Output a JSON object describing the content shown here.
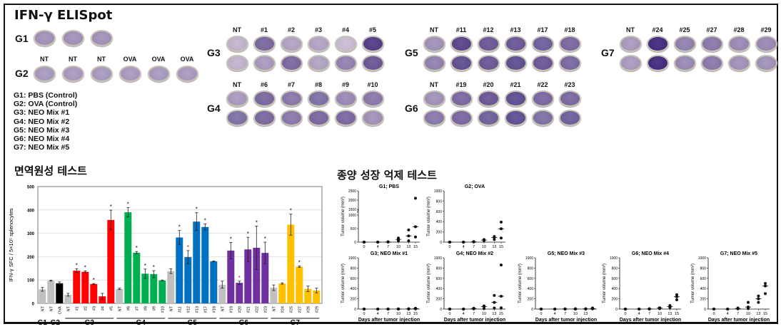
{
  "elispot": {
    "title": "IFN-γ ELISpot",
    "g1": {
      "label": "G1",
      "shades": [
        0.35,
        0.35,
        0.35
      ]
    },
    "g2": {
      "label": "G2",
      "labels": [
        "NT",
        "NT",
        "NT",
        "OVA",
        "OVA",
        "OVA"
      ],
      "shades": [
        0.3,
        0.3,
        0.3,
        0.3,
        0.3,
        0.3
      ]
    },
    "legend": [
      "G1: PBS (Control)",
      "G2: OVA (Control)",
      "G3: NEO Mix #1",
      "G4: NEO Mix #2",
      "G5: NEO Mix #3",
      "G6: NEO Mix #4",
      "G7: NEO Mix #5"
    ],
    "blocks": [
      {
        "group": "G3",
        "labels": [
          "NT",
          "#1",
          "#2",
          "#3",
          "#4",
          "#5"
        ],
        "shades": [
          [
            0.15,
            0.6,
            0.25,
            0.25,
            0.1,
            0.85
          ],
          [
            0.15,
            0.3,
            0.6,
            0.25,
            0.45,
            0.7
          ]
        ]
      },
      {
        "group": "G4",
        "labels": [
          "NT",
          "#6",
          "#7",
          "#8",
          "#9",
          "#10"
        ],
        "shades": [
          [
            0.3,
            0.6,
            0.5,
            0.55,
            0.4,
            0.5
          ],
          [
            0.55,
            0.6,
            0.5,
            0.6,
            0.6,
            0.35
          ]
        ]
      },
      {
        "group": "G5",
        "labels": [
          "NT",
          "#11",
          "#12",
          "#13",
          "#17",
          "#18"
        ],
        "shades": [
          [
            0.35,
            0.8,
            0.7,
            0.7,
            0.65,
            0.6
          ],
          [
            0.45,
            0.75,
            0.7,
            0.75,
            0.7,
            0.6
          ]
        ]
      },
      {
        "group": "G6",
        "labels": [
          "NT",
          "#19",
          "#20",
          "#21",
          "#22",
          "#23"
        ],
        "shades": [
          [
            0.35,
            0.6,
            0.7,
            0.75,
            0.6,
            0.6
          ],
          [
            0.5,
            0.6,
            0.65,
            0.75,
            0.55,
            0.65
          ]
        ]
      },
      {
        "group": "G7",
        "labels": [
          "NT",
          "#24",
          "#25",
          "#27",
          "#28",
          "#29"
        ],
        "shades": [
          [
            0.3,
            0.95,
            0.45,
            0.5,
            0.4,
            0.4
          ],
          [
            0.3,
            0.95,
            0.4,
            0.5,
            0.35,
            0.35
          ]
        ]
      }
    ]
  },
  "immuno_title": "면역원성 테스트",
  "tumor_title": "종양 성장 억제 테스트",
  "chart_data": [
    {
      "type": "bar",
      "title": "",
      "ylabel": "IFN-γ SFC / 5×10⁵ splenocytes",
      "ylim": [
        0,
        500
      ],
      "yticks": [
        0,
        100,
        200,
        300,
        400,
        500
      ],
      "grid": true,
      "groups": [
        {
          "name": "G1",
          "color": "#c0c0c0",
          "bars": [
            {
              "label": "NT",
              "value": 60,
              "err": 8,
              "star": ""
            }
          ]
        },
        {
          "name": "G2",
          "color": "#c0c0c0",
          "bars": [
            {
              "label": "NT",
              "value": 97,
              "err": 2,
              "star": ""
            },
            {
              "label": "OVA",
              "value": 86,
              "err": 6,
              "star": "",
              "color": "#000000"
            }
          ]
        },
        {
          "name": "G3",
          "color": "#ff0000",
          "bars": [
            {
              "label": "NT",
              "value": 37,
              "err": 6,
              "star": "",
              "color": "#c0c0c0"
            },
            {
              "label": "#1",
              "value": 140,
              "err": 8,
              "star": "*"
            },
            {
              "label": "#2",
              "value": 135,
              "err": 4,
              "star": "*"
            },
            {
              "label": "#3",
              "value": 83,
              "err": 2,
              "star": "*"
            },
            {
              "label": "#4",
              "value": 30,
              "err": 13,
              "star": ""
            },
            {
              "label": "#5",
              "value": 357,
              "err": 42,
              "star": "*"
            }
          ]
        },
        {
          "name": "G4",
          "color": "#00b050",
          "bars": [
            {
              "label": "NT",
              "value": 62,
              "err": 3,
              "star": "",
              "color": "#c0c0c0"
            },
            {
              "label": "#6",
              "value": 390,
              "err": 20,
              "star": "*"
            },
            {
              "label": "#7",
              "value": 217,
              "err": 5,
              "star": "*"
            },
            {
              "label": "#8",
              "value": 127,
              "err": 20,
              "star": "*"
            },
            {
              "label": "#9",
              "value": 125,
              "err": 15,
              "star": "*"
            },
            {
              "label": "#10",
              "value": 98,
              "err": 2,
              "star": ""
            }
          ]
        },
        {
          "name": "G5",
          "color": "#0070c0",
          "bars": [
            {
              "label": "NT",
              "value": 138,
              "err": 10,
              "star": "",
              "color": "#c0c0c0"
            },
            {
              "label": "#11",
              "value": 282,
              "err": 30,
              "star": "*"
            },
            {
              "label": "#12",
              "value": 198,
              "err": 28,
              "star": "*",
              "star_color": "#ff0000"
            },
            {
              "label": "#13",
              "value": 350,
              "err": 38,
              "star": "*"
            },
            {
              "label": "#17",
              "value": 327,
              "err": 13,
              "star": "*"
            },
            {
              "label": "#18",
              "value": 180,
              "err": 2,
              "star": ""
            }
          ]
        },
        {
          "name": "G6",
          "color": "#7030a0",
          "bars": [
            {
              "label": "NT",
              "value": 80,
              "err": 15,
              "star": "",
              "color": "#c0c0c0"
            },
            {
              "label": "#19",
              "value": 226,
              "err": 35,
              "star": "*"
            },
            {
              "label": "#20",
              "value": 88,
              "err": 7,
              "star": "*",
              "star_color": "#ff0000"
            },
            {
              "label": "#21",
              "value": 231,
              "err": 52,
              "star": "*"
            },
            {
              "label": "#22",
              "value": 238,
              "err": 93,
              "star": "*"
            },
            {
              "label": "#23",
              "value": 216,
              "err": 46,
              "star": "*"
            }
          ]
        },
        {
          "name": "G7",
          "color": "#ffc000",
          "bars": [
            {
              "label": "NT",
              "value": 67,
              "err": 12,
              "star": "",
              "color": "#c0c0c0"
            },
            {
              "label": "#24",
              "value": 85,
              "err": 3,
              "star": ""
            },
            {
              "label": "#25",
              "value": 337,
              "err": 45,
              "star": "*"
            },
            {
              "label": "#27",
              "value": 157,
              "err": 3,
              "star": "*"
            },
            {
              "label": "#28",
              "value": 62,
              "err": 12,
              "star": ""
            },
            {
              "label": "#29",
              "value": 55,
              "err": 10,
              "star": ""
            }
          ]
        }
      ]
    },
    {
      "type": "scatter",
      "xlabel": "Days after tumor injection",
      "ylabel": "Tumor volume (mm³)",
      "plots": [
        {
          "title": "G1; PBS",
          "broken_axis": true,
          "yticks": [
            0,
            500,
            1000,
            1500,
            2000,
            2500
          ],
          "xticks": [
            "0",
            "4",
            "7",
            "10",
            "13",
            "15"
          ],
          "show_xlabel": false,
          "x": [
            0,
            4,
            7,
            10,
            13,
            15
          ],
          "points": [
            [
              0,
              0,
              0
            ],
            [
              0,
              0,
              0
            ],
            [
              5,
              5,
              10
            ],
            [
              50,
              100,
              150
            ],
            [
              50,
              230,
              450
            ],
            [
              190,
              570,
              2100
            ]
          ],
          "median": [
            0,
            0,
            5,
            100,
            230,
            570
          ]
        },
        {
          "title": "G2; OVA",
          "yticks": [
            0,
            200,
            400,
            600,
            800,
            1000
          ],
          "xticks": [
            "0",
            "4",
            "7",
            "10",
            "13",
            "15"
          ],
          "show_xlabel": false,
          "x": [
            0,
            4,
            7,
            10,
            13,
            15
          ],
          "points": [
            [
              0,
              0,
              0
            ],
            [
              0,
              0,
              0
            ],
            [
              5,
              5,
              10
            ],
            [
              30,
              40,
              50
            ],
            [
              50,
              90,
              110
            ],
            [
              80,
              260,
              390
            ]
          ],
          "median": [
            0,
            0,
            5,
            40,
            90,
            260
          ]
        },
        {
          "title": "G3; NEO Mix #1",
          "yticks": [
            0,
            200,
            400,
            600,
            800,
            1000
          ],
          "xticks": [
            "0",
            "4",
            "7",
            "10",
            "13",
            "15"
          ],
          "show_xlabel": true,
          "x": [
            0,
            4,
            7,
            10,
            13,
            15
          ],
          "points": [
            [
              0,
              0,
              0
            ],
            [
              0,
              0,
              0
            ],
            [
              0,
              0,
              2
            ],
            [
              0,
              2,
              4
            ],
            [
              0,
              3,
              5
            ],
            [
              5,
              10,
              15
            ]
          ],
          "median": [
            0,
            0,
            0,
            2,
            3,
            10
          ]
        },
        {
          "title": "G4; NEO Mix #2",
          "yticks": [
            0,
            200,
            400,
            600,
            800,
            1000
          ],
          "xticks": [
            "0",
            "4",
            "7",
            "10",
            "13",
            "15"
          ],
          "show_xlabel": true,
          "x": [
            0,
            4,
            7,
            10,
            13,
            15
          ],
          "points": [
            [
              0,
              0,
              0
            ],
            [
              0,
              0,
              0
            ],
            [
              5,
              10,
              15
            ],
            [
              10,
              50,
              60
            ],
            [
              20,
              130,
              265
            ],
            [
              25,
              250,
              860
            ]
          ],
          "median": [
            0,
            0,
            10,
            50,
            130,
            250
          ]
        },
        {
          "title": "G5; NEO Mix #3",
          "yticks": [
            0,
            200,
            400,
            600,
            800,
            1000
          ],
          "xticks": [
            "0",
            "4",
            "7",
            "10",
            "13",
            ""
          ],
          "show_xlabel": true,
          "x": [
            0,
            4,
            7,
            10,
            13,
            15
          ],
          "points": [
            [
              0,
              0,
              0
            ],
            [
              0,
              0,
              0
            ],
            [
              0,
              2,
              3
            ],
            [
              0,
              3,
              5
            ],
            [
              0,
              3,
              5
            ],
            [
              5,
              10,
              20
            ]
          ],
          "median": [
            0,
            0,
            2,
            3,
            3,
            10
          ]
        },
        {
          "title": "G6; NEO Mix #4",
          "yticks": [
            0,
            200,
            400,
            600,
            800,
            1000
          ],
          "xticks": [
            "0",
            "4",
            "7",
            "10",
            "13",
            "15"
          ],
          "show_xlabel": true,
          "x": [
            0,
            4,
            7,
            10,
            13,
            15
          ],
          "points": [
            [
              0,
              0,
              0
            ],
            [
              0,
              0,
              0
            ],
            [
              0,
              3,
              5
            ],
            [
              10,
              20,
              25
            ],
            [
              30,
              50,
              70
            ],
            [
              180,
              240,
              280
            ]
          ],
          "median": [
            0,
            0,
            3,
            20,
            50,
            240
          ]
        },
        {
          "title": "G7; NEO Mix #5",
          "yticks": [
            0,
            200,
            400,
            600,
            800,
            1000
          ],
          "xticks": [
            "0",
            "4",
            "7",
            "10",
            "13",
            "15"
          ],
          "show_xlabel": true,
          "x": [
            0,
            4,
            7,
            10,
            13,
            15
          ],
          "points": [
            [
              0,
              0,
              0
            ],
            [
              0,
              0,
              0
            ],
            [
              5,
              10,
              20
            ],
            [
              10,
              40,
              130
            ],
            [
              130,
              200,
              255
            ],
            [
              300,
              450,
              500
            ]
          ],
          "median": [
            0,
            0,
            10,
            40,
            200,
            450
          ]
        }
      ]
    }
  ]
}
